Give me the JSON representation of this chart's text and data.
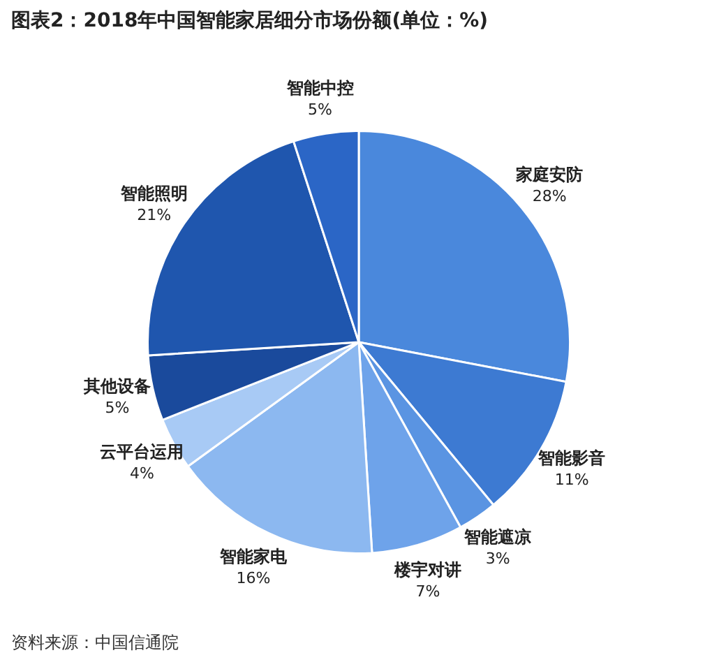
{
  "chart_data": {
    "type": "pie",
    "title": "图表2：2018年中国智能家居细分市场份额(单位：%)",
    "categories": [
      "家庭安防",
      "智能影音",
      "智能遮凉",
      "楼宇对讲",
      "智能家电",
      "云平台运用",
      "其他设备",
      "智能照明",
      "智能中控"
    ],
    "values": [
      28,
      11,
      3,
      7,
      16,
      4,
      5,
      21,
      5
    ],
    "value_labels": [
      "28%",
      "11%",
      "3%",
      "7%",
      "16%",
      "4%",
      "5%",
      "21%",
      "5%"
    ],
    "colors": [
      "#4a88dc",
      "#3d7ad2",
      "#5a94e2",
      "#6ea3ea",
      "#8cb8f0",
      "#a8caf5",
      "#1a4a9c",
      "#1f56ae",
      "#2b66c6"
    ],
    "legend": false,
    "annotations": [
      "资料来源：中国信通院"
    ]
  }
}
